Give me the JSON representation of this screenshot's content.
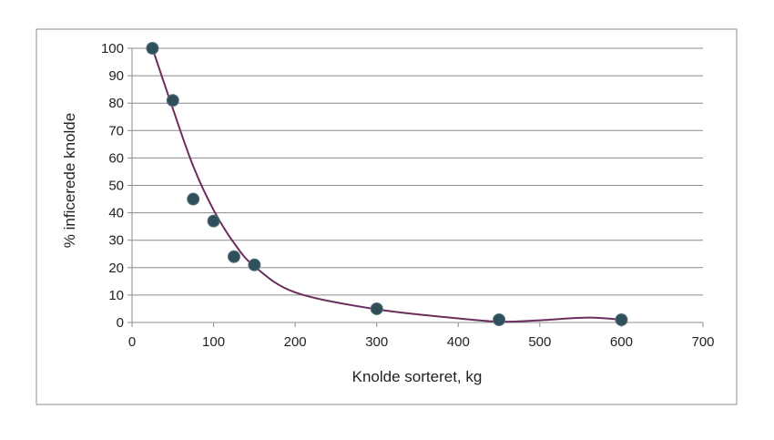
{
  "chart_data": {
    "type": "scatter",
    "title": "",
    "xlabel": "Knolde sorteret, kg",
    "ylabel": "% inficerede knolde",
    "xlim": [
      0,
      700
    ],
    "ylim": [
      0,
      100
    ],
    "xticks": [
      0,
      100,
      200,
      300,
      400,
      500,
      600,
      700
    ],
    "yticks": [
      0,
      10,
      20,
      30,
      40,
      50,
      60,
      70,
      80,
      90,
      100
    ],
    "grid": "horizontal",
    "legend": "none",
    "series": [
      {
        "x": [
          25,
          50,
          75,
          100,
          125,
          150,
          300,
          450,
          600
        ],
        "y": [
          100,
          81,
          45,
          37,
          24,
          21,
          5,
          1,
          1
        ],
        "marker_color": "#2f4f5a",
        "marker_edge_color": "#5a7480"
      }
    ],
    "trendline": {
      "type": "smoothed",
      "color": "#6b2d5c",
      "points": {
        "x": [
          25,
          50,
          75,
          100,
          125,
          150,
          200,
          300,
          400,
          450,
          500,
          560,
          600
        ],
        "y": [
          100,
          78,
          57,
          41,
          29,
          20.5,
          11,
          4.8,
          1.5,
          0.3,
          0.8,
          1.8,
          1
        ]
      }
    },
    "colors": {
      "grid": "#8c8c8c",
      "axis": "#8c8c8c",
      "frame": "#8c8c8c"
    }
  }
}
